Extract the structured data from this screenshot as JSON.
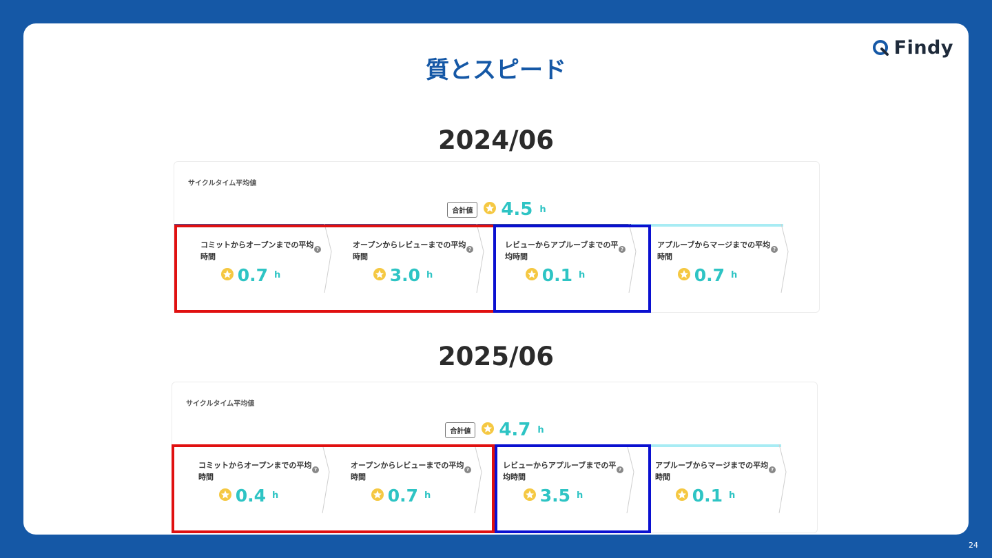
{
  "logo": {
    "text": "Findy"
  },
  "slide": {
    "title": "質とスピード",
    "page_number": "24"
  },
  "panels": [
    {
      "period": "2024/06",
      "label": "サイクルタイム平均値",
      "total_tag": "合計値",
      "total_value": "4.5",
      "unit": "h",
      "steps": [
        {
          "title": "コミットからオープンまでの平均時間",
          "value": "0.7"
        },
        {
          "title": "オープンからレビューまでの平均時間",
          "value": "3.0"
        },
        {
          "title": "レビューからアプルーブまでの平均時間",
          "value": "0.1"
        },
        {
          "title": "アプルーブからマージまでの平均時間",
          "value": "0.7"
        }
      ]
    },
    {
      "period": "2025/06",
      "label": "サイクルタイム平均値",
      "total_tag": "合計値",
      "total_value": "4.7",
      "unit": "h",
      "steps": [
        {
          "title": "コミットからオープンまでの平均時間",
          "value": "0.4"
        },
        {
          "title": "オープンからレビューまでの平均時間",
          "value": "0.7"
        },
        {
          "title": "レビューからアプルーブまでの平均時間",
          "value": "3.5"
        },
        {
          "title": "アプルーブからマージまでの平均時間",
          "value": "0.1"
        }
      ]
    }
  ],
  "colors": {
    "background": "#1558a6",
    "accent_value": "#2ec4c4",
    "highlight_red": "#e01010",
    "highlight_blue": "#0a10d0",
    "step_bar": [
      "#3a4fa0",
      "#3a4fa0",
      "#3a4fa0",
      "#a8ecf4"
    ],
    "badge": "#f5c842"
  },
  "icons": {
    "badge": "award-badge-icon",
    "help": "help-circle-icon"
  }
}
